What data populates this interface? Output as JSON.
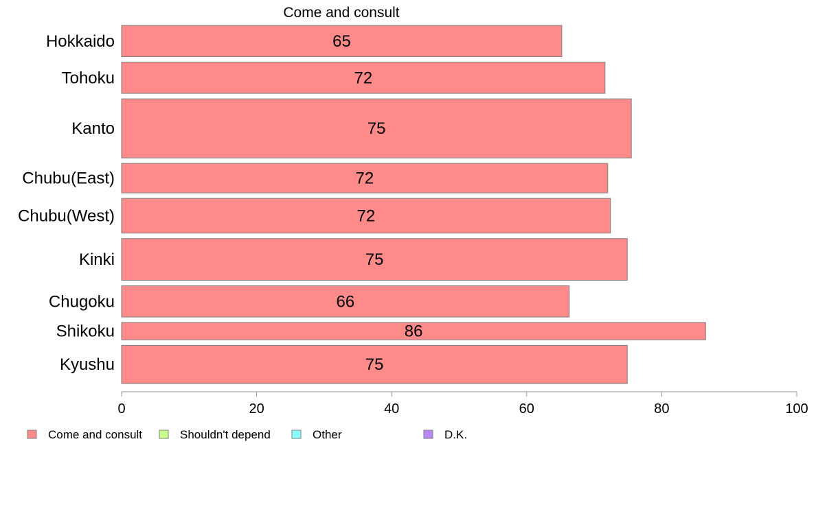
{
  "chart_data": {
    "type": "bar",
    "orientation": "horizontal",
    "title": "Come and consult",
    "categories": [
      "Hokkaido",
      "Tohoku",
      "Kanto",
      "Chubu(East)",
      "Chubu(West)",
      "Kinki",
      "Chugoku",
      "Shikoku",
      "Kyushu"
    ],
    "series": [
      {
        "name": "Come and consult",
        "values": [
          65.2,
          71.6,
          75.5,
          72.0,
          72.4,
          74.9,
          66.3,
          86.5,
          74.9
        ],
        "labels": [
          "65",
          "72",
          "75",
          "72",
          "72",
          "75",
          "66",
          "86",
          "75"
        ],
        "color": "#ff8a8a"
      }
    ],
    "sample_weights": [
      0.9,
      0.9,
      1.7,
      0.85,
      1.0,
      1.2,
      0.9,
      0.5,
      1.1
    ],
    "xlim": [
      0,
      100
    ],
    "xticks": [
      "0",
      "20",
      "40",
      "60",
      "80",
      "100"
    ],
    "xlabel": "",
    "ylabel": "",
    "grid": false,
    "legend": {
      "placement": "bottom",
      "items": [
        {
          "label": "Come and consult",
          "color": "#ff8a8a"
        },
        {
          "label": "Shouldn't depend",
          "color": "#c6ff8a"
        },
        {
          "label": "Other",
          "color": "#8affff"
        },
        {
          "label": "D.K.",
          "color": "#b98af5"
        }
      ]
    }
  }
}
